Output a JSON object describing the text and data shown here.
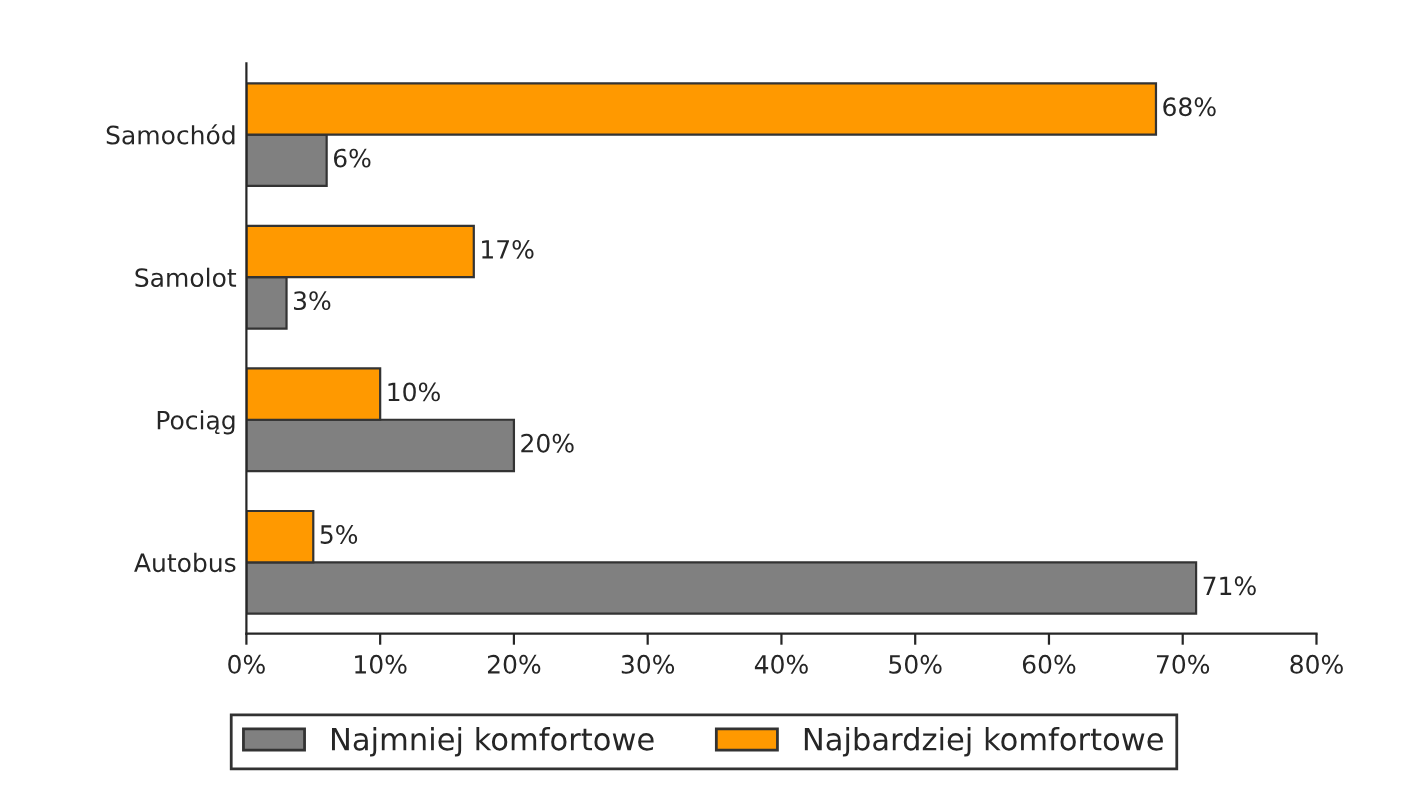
{
  "chart_data": {
    "type": "bar",
    "orientation": "horizontal",
    "categories": [
      "Samochód",
      "Samolot",
      "Pociąg",
      "Autobus"
    ],
    "series": [
      {
        "name": "Najmniej komfortowe",
        "color": "#808080",
        "values": [
          6,
          3,
          20,
          71
        ],
        "value_labels": [
          "6%",
          "3%",
          "20%",
          "71%"
        ]
      },
      {
        "name": "Najbardziej komfortowe",
        "color": "#ff9900",
        "values": [
          68,
          17,
          10,
          5
        ],
        "value_labels": [
          "68%",
          "17%",
          "10%",
          "5%"
        ]
      }
    ],
    "xlim": [
      0,
      80
    ],
    "xticks": [
      {
        "value": 0,
        "label": "0%"
      },
      {
        "value": 10,
        "label": "10%"
      },
      {
        "value": 20,
        "label": "20%"
      },
      {
        "value": 30,
        "label": "30%"
      },
      {
        "value": 40,
        "label": "40%"
      },
      {
        "value": 50,
        "label": "50%"
      },
      {
        "value": 60,
        "label": "60%"
      },
      {
        "value": 70,
        "label": "70%"
      },
      {
        "value": 80,
        "label": "80%"
      }
    ],
    "legend": "bottom",
    "grid": false
  }
}
